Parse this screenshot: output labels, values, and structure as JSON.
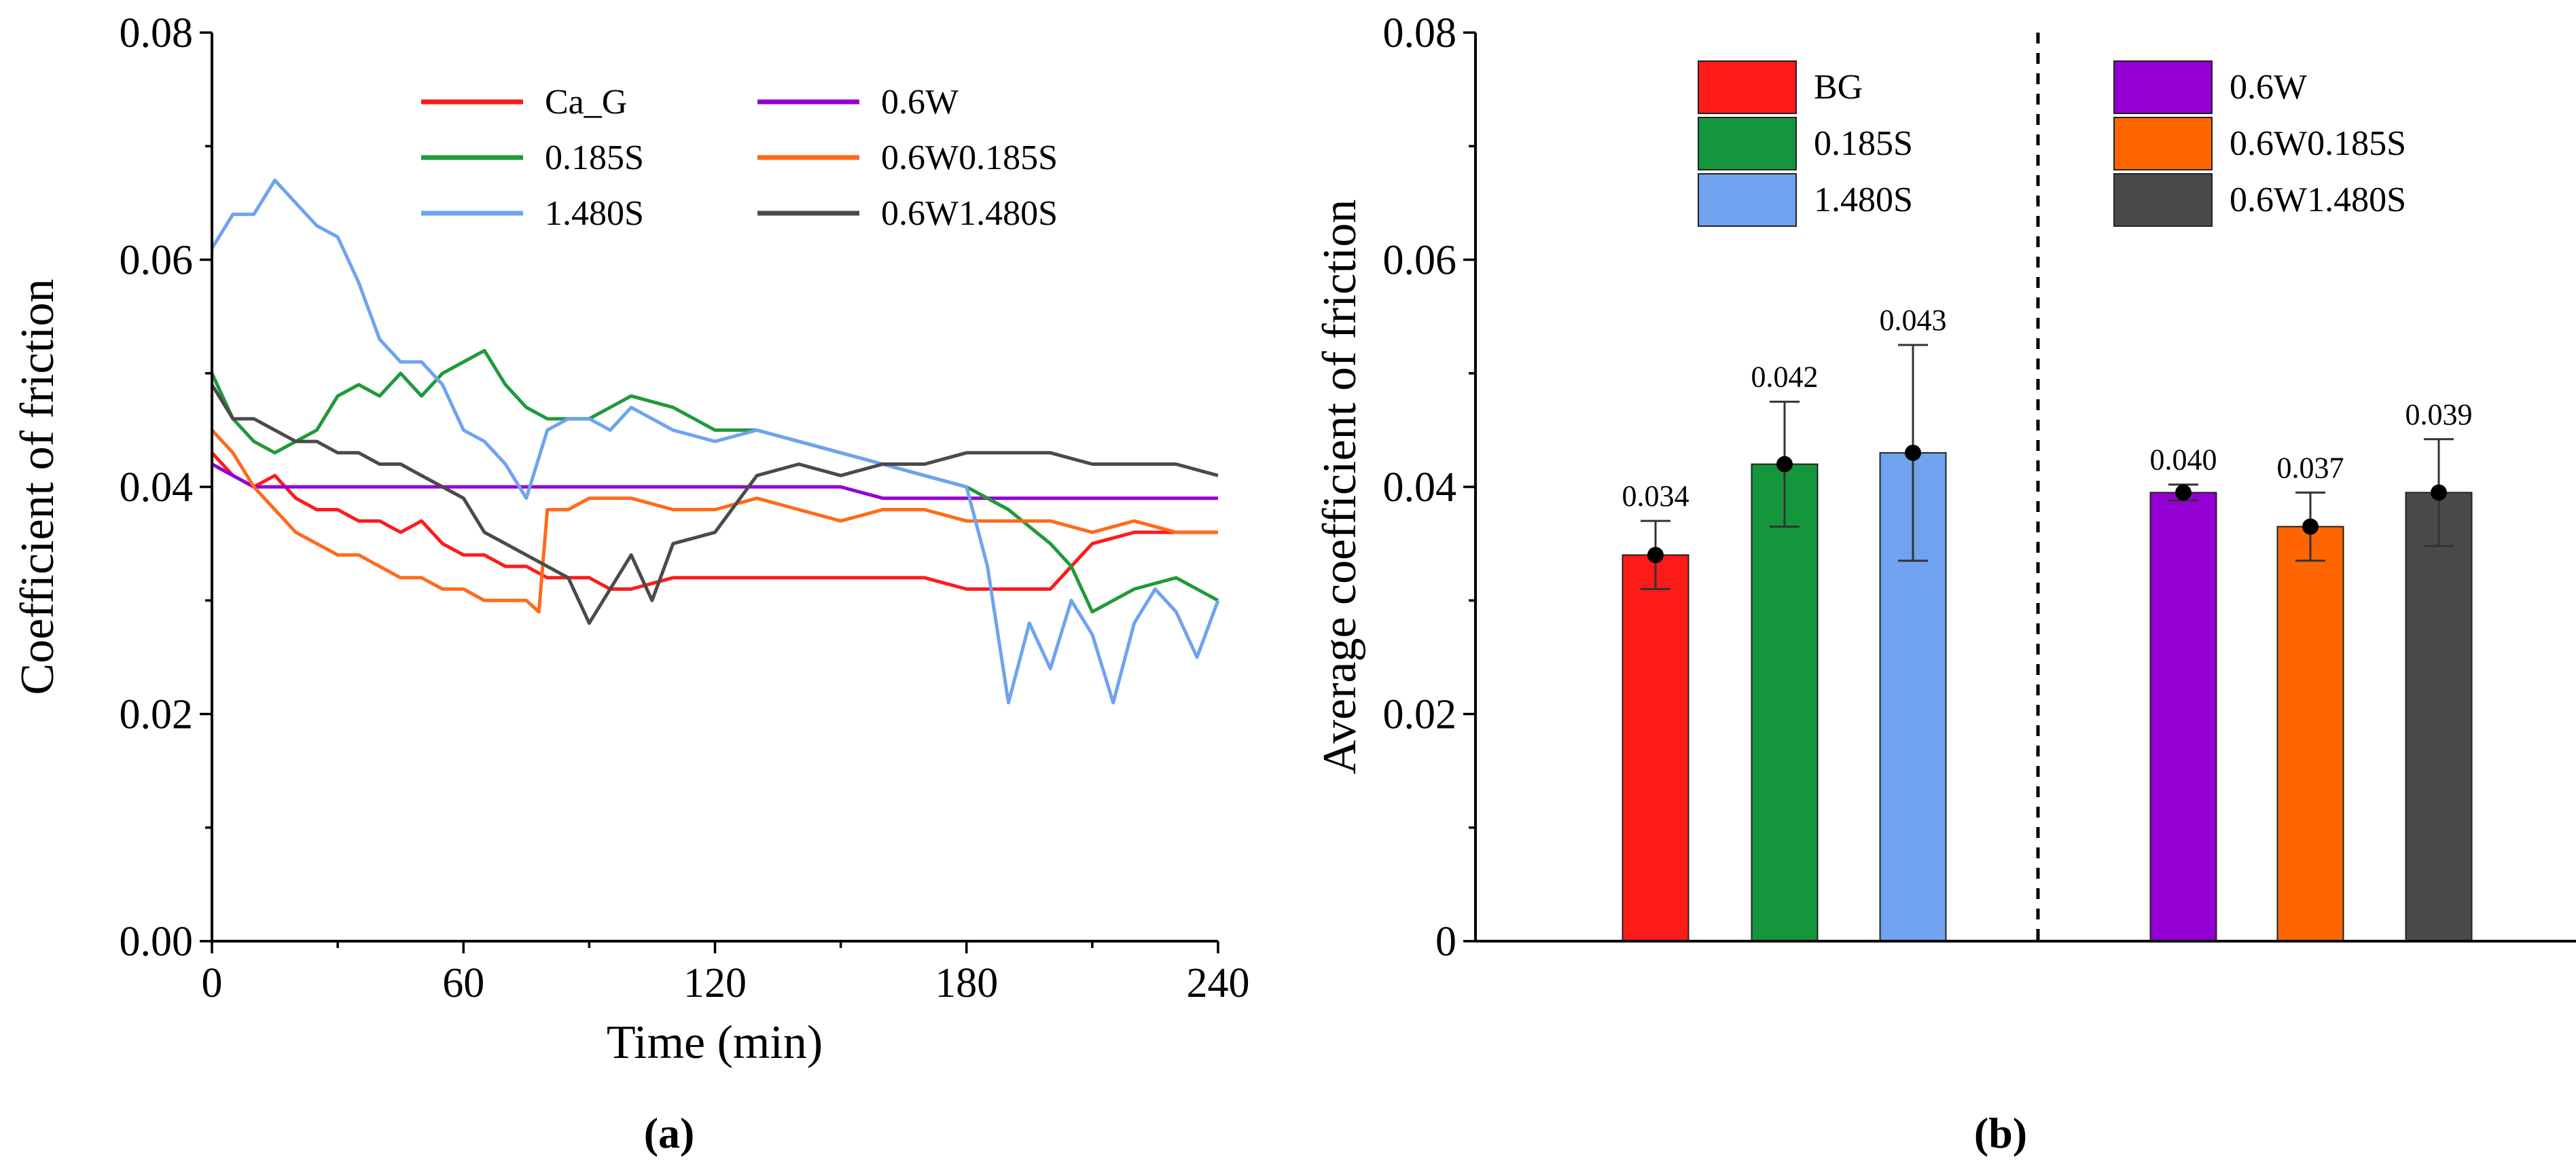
{
  "chart_data": [
    {
      "type": "line",
      "panel": "a",
      "caption": "(a)",
      "xlabel": "Time (min)",
      "ylabel": "Coefficient of friction",
      "xlim": [
        0,
        240
      ],
      "ylim": [
        0,
        0.08
      ],
      "xticks": [
        "0",
        "60",
        "120",
        "180",
        "240"
      ],
      "yticks": [
        "0.00",
        "0.02",
        "0.04",
        "0.06",
        "0.08"
      ],
      "legend_position": "top-right",
      "series": [
        {
          "name": "Ca_G",
          "color": "#ff1a1a",
          "x": [
            0,
            5,
            10,
            15,
            20,
            25,
            30,
            35,
            40,
            45,
            50,
            55,
            60,
            65,
            70,
            75,
            80,
            85,
            90,
            95,
            100,
            110,
            120,
            130,
            140,
            150,
            160,
            170,
            180,
            190,
            200,
            210,
            220,
            230,
            240
          ],
          "y": [
            0.043,
            0.041,
            0.04,
            0.041,
            0.039,
            0.038,
            0.038,
            0.037,
            0.037,
            0.036,
            0.037,
            0.035,
            0.034,
            0.034,
            0.033,
            0.033,
            0.032,
            0.032,
            0.032,
            0.031,
            0.031,
            0.032,
            0.032,
            0.032,
            0.032,
            0.032,
            0.032,
            0.032,
            0.031,
            0.031,
            0.031,
            0.035,
            0.036,
            0.036,
            0.036
          ]
        },
        {
          "name": "0.6W",
          "color": "#9400d3",
          "x": [
            0,
            5,
            10,
            20,
            30,
            40,
            50,
            60,
            70,
            80,
            90,
            100,
            110,
            120,
            130,
            140,
            150,
            160,
            170,
            180,
            190,
            200,
            210,
            220,
            230,
            240
          ],
          "y": [
            0.042,
            0.041,
            0.04,
            0.04,
            0.04,
            0.04,
            0.04,
            0.04,
            0.04,
            0.04,
            0.04,
            0.04,
            0.04,
            0.04,
            0.04,
            0.04,
            0.04,
            0.039,
            0.039,
            0.039,
            0.039,
            0.039,
            0.039,
            0.039,
            0.039,
            0.039
          ]
        },
        {
          "name": "0.185S",
          "color": "#1f9a3a",
          "x": [
            0,
            5,
            10,
            15,
            20,
            25,
            30,
            35,
            40,
            45,
            50,
            55,
            60,
            65,
            70,
            75,
            80,
            85,
            90,
            95,
            100,
            110,
            120,
            130,
            140,
            150,
            160,
            170,
            180,
            190,
            200,
            205,
            210,
            220,
            230,
            240
          ],
          "y": [
            0.05,
            0.046,
            0.044,
            0.043,
            0.044,
            0.045,
            0.048,
            0.049,
            0.048,
            0.05,
            0.048,
            0.05,
            0.051,
            0.052,
            0.049,
            0.047,
            0.046,
            0.046,
            0.046,
            0.047,
            0.048,
            0.047,
            0.045,
            0.045,
            0.044,
            0.043,
            0.042,
            0.041,
            0.04,
            0.038,
            0.035,
            0.033,
            0.029,
            0.031,
            0.032,
            0.03
          ]
        },
        {
          "name": "0.6W0.185S",
          "color": "#ff6a1a",
          "x": [
            0,
            5,
            10,
            15,
            20,
            25,
            30,
            35,
            40,
            45,
            50,
            55,
            60,
            65,
            70,
            75,
            78,
            80,
            85,
            90,
            95,
            100,
            110,
            120,
            130,
            140,
            150,
            160,
            170,
            180,
            190,
            200,
            210,
            220,
            230,
            240
          ],
          "y": [
            0.045,
            0.043,
            0.04,
            0.038,
            0.036,
            0.035,
            0.034,
            0.034,
            0.033,
            0.032,
            0.032,
            0.031,
            0.031,
            0.03,
            0.03,
            0.03,
            0.029,
            0.038,
            0.038,
            0.039,
            0.039,
            0.039,
            0.038,
            0.038,
            0.039,
            0.038,
            0.037,
            0.038,
            0.038,
            0.037,
            0.037,
            0.037,
            0.036,
            0.037,
            0.036,
            0.036
          ]
        },
        {
          "name": "1.480S",
          "color": "#6fa3f0",
          "x": [
            0,
            5,
            10,
            15,
            20,
            25,
            30,
            35,
            40,
            45,
            50,
            55,
            60,
            65,
            70,
            75,
            80,
            85,
            90,
            95,
            100,
            110,
            120,
            130,
            140,
            150,
            160,
            170,
            180,
            185,
            190,
            195,
            200,
            205,
            210,
            215,
            220,
            225,
            230,
            235,
            240
          ],
          "y": [
            0.061,
            0.064,
            0.064,
            0.067,
            0.065,
            0.063,
            0.062,
            0.058,
            0.053,
            0.051,
            0.051,
            0.049,
            0.045,
            0.044,
            0.042,
            0.039,
            0.045,
            0.046,
            0.046,
            0.045,
            0.047,
            0.045,
            0.044,
            0.045,
            0.044,
            0.043,
            0.042,
            0.041,
            0.04,
            0.033,
            0.021,
            0.028,
            0.024,
            0.03,
            0.027,
            0.021,
            0.028,
            0.031,
            0.029,
            0.025,
            0.03
          ]
        },
        {
          "name": "0.6W1.480S",
          "color": "#4a4a4a",
          "x": [
            0,
            5,
            10,
            15,
            20,
            25,
            30,
            35,
            40,
            45,
            50,
            55,
            60,
            65,
            70,
            75,
            80,
            85,
            90,
            95,
            100,
            105,
            110,
            120,
            130,
            140,
            150,
            160,
            170,
            180,
            190,
            200,
            210,
            220,
            230,
            240
          ],
          "y": [
            0.049,
            0.046,
            0.046,
            0.045,
            0.044,
            0.044,
            0.043,
            0.043,
            0.042,
            0.042,
            0.041,
            0.04,
            0.039,
            0.036,
            0.035,
            0.034,
            0.033,
            0.032,
            0.028,
            0.031,
            0.034,
            0.03,
            0.035,
            0.036,
            0.041,
            0.042,
            0.041,
            0.042,
            0.042,
            0.043,
            0.043,
            0.043,
            0.042,
            0.042,
            0.042,
            0.041
          ]
        }
      ]
    },
    {
      "type": "bar",
      "panel": "b",
      "caption": "(b)",
      "xlabel": "",
      "ylabel": "Average coefficient of friction",
      "ylim": [
        0,
        0.08
      ],
      "yticks": [
        "0",
        "0.02",
        "0.04",
        "0.06",
        "0.08"
      ],
      "legend_position": "top",
      "divider": "dashed vertical line between the two groups of three bars",
      "bars": [
        {
          "name": "BG",
          "value": 0.034,
          "label": "0.034",
          "error": 0.003,
          "color": "#ff1a1a"
        },
        {
          "name": "0.185S",
          "value": 0.042,
          "label": "0.042",
          "error": 0.0055,
          "color": "#14963c"
        },
        {
          "name": "1.480S",
          "value": 0.043,
          "label": "0.043",
          "error": 0.0095,
          "color": "#6fa3f0"
        },
        {
          "name": "0.6W",
          "value": 0.0395,
          "label": "0.040",
          "error": 0.0007,
          "color": "#9400d3"
        },
        {
          "name": "0.6W0.185S",
          "value": 0.0365,
          "label": "0.037",
          "error": 0.003,
          "color": "#ff6600"
        },
        {
          "name": "0.6W1.480S",
          "value": 0.0395,
          "label": "0.039",
          "error": 0.0047,
          "color": "#4a4a4a"
        }
      ]
    }
  ]
}
